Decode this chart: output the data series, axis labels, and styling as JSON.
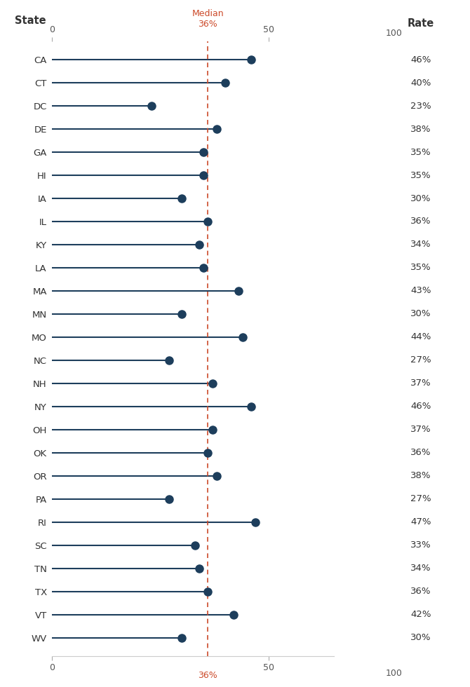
{
  "states": [
    "CA",
    "CT",
    "DC",
    "DE",
    "GA",
    "HI",
    "IA",
    "IL",
    "KY",
    "LA",
    "MA",
    "MN",
    "MO",
    "NC",
    "NH",
    "NY",
    "OH",
    "OK",
    "OR",
    "PA",
    "RI",
    "SC",
    "TN",
    "TX",
    "VT",
    "WV"
  ],
  "values": [
    46,
    40,
    23,
    38,
    35,
    35,
    30,
    36,
    34,
    35,
    43,
    30,
    44,
    27,
    37,
    46,
    37,
    36,
    38,
    27,
    47,
    33,
    34,
    36,
    42,
    30
  ],
  "median": 36,
  "dot_color": "#1d3e5c",
  "line_color": "#1d3e5c",
  "median_color": "#cc4a2a",
  "background_color": "#ffffff",
  "tick_label_fontsize": 9,
  "state_label_fontsize": 9.5,
  "rate_label_fontsize": 9.5,
  "header_fontsize": 10.5
}
